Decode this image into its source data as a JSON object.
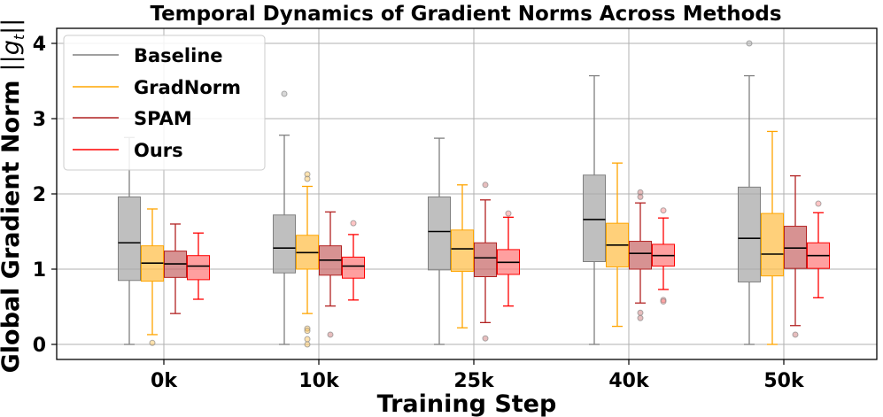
{
  "chart_data": {
    "type": "box",
    "title": "Temporal Dynamics of Gradient Norms Across Methods",
    "xlabel": "Training Step",
    "ylabel": "Global Gradient Norm",
    "ylabel_math": "||g",
    "ylabel_math_sub": "t",
    "ylabel_math_close": "||",
    "ylim": [
      -0.2,
      4.2
    ],
    "yticks": [
      "0",
      "1",
      "2",
      "3",
      "4"
    ],
    "ytick_values": [
      0,
      1,
      2,
      3,
      4
    ],
    "categories": [
      "0k",
      "10k",
      "25k",
      "40k",
      "50k"
    ],
    "grid": true,
    "legend_position": "top-left",
    "series": [
      {
        "name": "Baseline",
        "color": "#a9a9a9",
        "line_color": "#808080",
        "boxes": [
          {
            "whislo": 0.0,
            "q1": 0.85,
            "med": 1.35,
            "q3": 1.96,
            "whishi": 2.75,
            "fliers": []
          },
          {
            "whislo": 0.0,
            "q1": 0.95,
            "med": 1.28,
            "q3": 1.72,
            "whishi": 2.78,
            "fliers": [
              3.33
            ]
          },
          {
            "whislo": 0.0,
            "q1": 0.99,
            "med": 1.5,
            "q3": 1.96,
            "whishi": 2.74,
            "fliers": []
          },
          {
            "whislo": 0.0,
            "q1": 1.1,
            "med": 1.66,
            "q3": 2.25,
            "whishi": 3.57,
            "fliers": []
          },
          {
            "whislo": 0.0,
            "q1": 0.83,
            "med": 1.41,
            "q3": 2.09,
            "whishi": 3.57,
            "fliers": [
              4.0
            ]
          }
        ]
      },
      {
        "name": "GradNorm",
        "color": "#ffc04d",
        "line_color": "#ffa500",
        "boxes": [
          {
            "whislo": 0.13,
            "q1": 0.84,
            "med": 1.08,
            "q3": 1.31,
            "whishi": 1.8,
            "fliers": [
              0.02
            ]
          },
          {
            "whislo": 0.41,
            "q1": 1.0,
            "med": 1.22,
            "q3": 1.45,
            "whishi": 2.1,
            "fliers": [
              2.26,
              2.2,
              0.21,
              0.18,
              0.07,
              0.0
            ]
          },
          {
            "whislo": 0.22,
            "q1": 0.97,
            "med": 1.27,
            "q3": 1.52,
            "whishi": 2.12,
            "fliers": []
          },
          {
            "whislo": 0.24,
            "q1": 1.03,
            "med": 1.32,
            "q3": 1.61,
            "whishi": 2.41,
            "fliers": []
          },
          {
            "whislo": 0.0,
            "q1": 0.91,
            "med": 1.2,
            "q3": 1.74,
            "whishi": 2.83,
            "fliers": []
          }
        ]
      },
      {
        "name": "SPAM",
        "color": "#c96e6e",
        "line_color": "#b22222",
        "boxes": [
          {
            "whislo": 0.41,
            "q1": 0.89,
            "med": 1.07,
            "q3": 1.24,
            "whishi": 1.6,
            "fliers": []
          },
          {
            "whislo": 0.51,
            "q1": 0.92,
            "med": 1.12,
            "q3": 1.31,
            "whishi": 1.76,
            "fliers": [
              0.13
            ]
          },
          {
            "whislo": 0.29,
            "q1": 0.9,
            "med": 1.15,
            "q3": 1.35,
            "whishi": 1.92,
            "fliers": [
              2.12,
              0.08
            ]
          },
          {
            "whislo": 0.55,
            "q1": 1.0,
            "med": 1.21,
            "q3": 1.37,
            "whishi": 1.88,
            "fliers": [
              2.02,
              1.96,
              0.42,
              0.35
            ]
          },
          {
            "whislo": 0.25,
            "q1": 1.01,
            "med": 1.28,
            "q3": 1.57,
            "whishi": 2.24,
            "fliers": [
              0.13
            ]
          }
        ]
      },
      {
        "name": "Ours",
        "color": "#ff7f7f",
        "line_color": "#ff0000",
        "boxes": [
          {
            "whislo": 0.6,
            "q1": 0.86,
            "med": 1.04,
            "q3": 1.18,
            "whishi": 1.48,
            "fliers": []
          },
          {
            "whislo": 0.59,
            "q1": 0.88,
            "med": 1.04,
            "q3": 1.16,
            "whishi": 1.46,
            "fliers": [
              1.61
            ]
          },
          {
            "whislo": 0.51,
            "q1": 0.93,
            "med": 1.09,
            "q3": 1.26,
            "whishi": 1.69,
            "fliers": [
              1.74
            ]
          },
          {
            "whislo": 0.73,
            "q1": 1.04,
            "med": 1.18,
            "q3": 1.33,
            "whishi": 1.68,
            "fliers": [
              1.78,
              0.59,
              0.57
            ]
          },
          {
            "whislo": 0.62,
            "q1": 1.01,
            "med": 1.18,
            "q3": 1.35,
            "whishi": 1.75,
            "fliers": [
              1.87
            ]
          }
        ]
      }
    ]
  }
}
